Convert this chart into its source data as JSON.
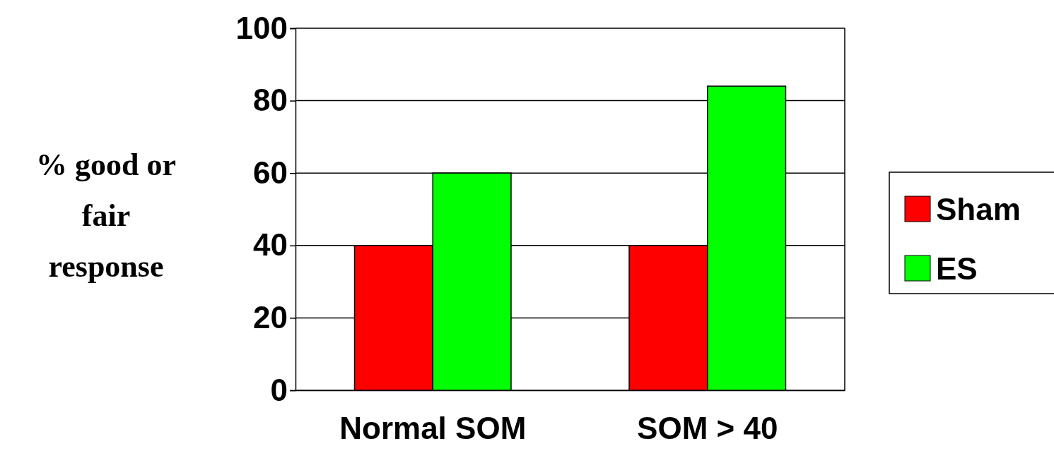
{
  "chart_data": {
    "type": "bar",
    "ylabel": "% good or fair response",
    "categories": [
      "Normal SOM",
      "SOM > 40"
    ],
    "series": [
      {
        "name": "Sham",
        "color": "#ff0000",
        "values": [
          40,
          40
        ]
      },
      {
        "name": "ES",
        "color": "#00ff00",
        "values": [
          60,
          84
        ]
      }
    ],
    "ylim": [
      0,
      100
    ],
    "yticks": [
      0,
      20,
      40,
      60,
      80,
      100
    ],
    "grid": "y",
    "legend": "right"
  }
}
